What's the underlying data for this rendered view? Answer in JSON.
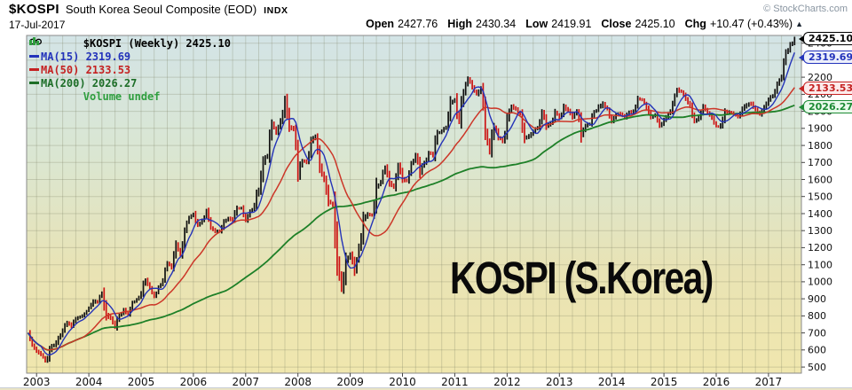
{
  "header": {
    "symbol": "$KOSPI",
    "name": "South Korea Seoul Composite (EOD)",
    "exchange": "INDX",
    "date": "17-Jul-2017",
    "copyright": "© StockCharts.com",
    "quote": {
      "open_label": "Open",
      "open_value": "2427.76",
      "high_label": "High",
      "high_value": "2430.34",
      "low_label": "Low",
      "low_value": "2419.91",
      "close_label": "Close",
      "close_value": "2425.10",
      "chg_label": "Chg",
      "chg_value": "+10.47 (+0.43%)",
      "arrow": "▲"
    }
  },
  "legend": {
    "main": "$KOSPI (Weekly) 2425.10",
    "ma15": "MA(15) 2319.69",
    "ma50": "MA(50) 2133.53",
    "ma200": "MA(200) 2026.27",
    "volume": "Volume undef"
  },
  "annotation": "KOSPI (S.Korea)",
  "callouts": [
    {
      "label": "2425.10",
      "value": 2425.1,
      "scheme": "close"
    },
    {
      "label": "2319.69",
      "value": 2319.69,
      "scheme": "ma15"
    },
    {
      "label": "2133.53",
      "value": 2133.53,
      "scheme": "ma50"
    },
    {
      "label": "2026.27",
      "value": 2026.27,
      "scheme": "ma200"
    }
  ],
  "chart_data": {
    "type": "ohlc",
    "title": "$KOSPI (Weekly) 2425.10",
    "xlim": [
      2002.81,
      2017.63
    ],
    "ylim": [
      464,
      2445
    ],
    "x_ticks": [
      2003,
      2004,
      2005,
      2006,
      2007,
      2008,
      2009,
      2010,
      2011,
      2012,
      2013,
      2014,
      2015,
      2016,
      2017
    ],
    "x_grid_step": 0.25,
    "y_ticks": [
      500,
      600,
      700,
      800,
      900,
      1000,
      1100,
      1200,
      1300,
      1400,
      1500,
      1600,
      1700,
      1800,
      1900,
      2000,
      2100,
      2200,
      2300,
      2400
    ],
    "grid": true,
    "legend_position": "top-left",
    "bar_up_color": "#101010",
    "bar_down_color": "#cc1414",
    "background_gradient": [
      "#d3e4e6",
      "#dae6d2",
      "#e9e3b4",
      "#f0e7ae"
    ],
    "last_close": 2425.1,
    "series": [
      {
        "name": "$KOSPI close (weekly, sampled monthly)",
        "start": 2002.8333,
        "step": 0.0833333,
        "values": [
          700,
          628,
          592,
          575,
          535,
          600,
          630,
          670,
          713,
          760,
          740,
          783,
          796,
          811,
          848,
          883,
          880,
          936,
          804,
          785,
          735,
          803,
          835,
          808,
          879,
          896,
          933,
          1011,
          966,
          912,
          970,
          1008,
          1112,
          1083,
          1221,
          1158,
          1297,
          1379,
          1399,
          1330,
          1359,
          1419,
          1317,
          1295,
          1297,
          1352,
          1371,
          1364,
          1432,
          1434,
          1360,
          1417,
          1453,
          1542,
          1700,
          1743,
          1933,
          1873,
          1946,
          2064,
          1906,
          1897,
          1624,
          1711,
          1704,
          1825,
          1852,
          1675,
          1595,
          1474,
          1448,
          1113,
          960,
          1124,
          1162,
          1063,
          1206,
          1369,
          1395,
          1390,
          1557,
          1591,
          1673,
          1580,
          1555,
          1683,
          1602,
          1594,
          1693,
          1741,
          1641,
          1698,
          1759,
          1743,
          1873,
          1883,
          1905,
          2051,
          2069,
          1939,
          2107,
          2192,
          2142,
          2101,
          2133,
          1880,
          1770,
          1909,
          1848,
          1826,
          1956,
          2030,
          2014,
          1982,
          1843,
          1854,
          1881,
          1905,
          1996,
          1912,
          1932,
          1997,
          1962,
          2026,
          2005,
          1964,
          2001,
          1863,
          1914,
          1926,
          1997,
          2030,
          2045,
          2011,
          1941,
          1980,
          1986,
          1962,
          1995,
          2002,
          2076,
          2068,
          2020,
          1964,
          1981,
          1916,
          1949,
          1986,
          2041,
          2127,
          2115,
          2074,
          2030,
          1941,
          1963,
          2029,
          1992,
          1961,
          1912,
          1917,
          1996,
          1994,
          1983,
          1970,
          2016,
          2035,
          2044,
          2008,
          1983,
          2026,
          2068,
          2092,
          2160,
          2205,
          2347,
          2392,
          2425
        ]
      }
    ],
    "moving_averages": [
      {
        "name": "MA(15)",
        "weeks": 15,
        "window_points": 7,
        "last": 2319.69,
        "color": "#2433b8",
        "width": 1.4
      },
      {
        "name": "MA(50)",
        "weeks": 50,
        "window_points": 24,
        "last": 2133.53,
        "color": "#cc3628",
        "width": 1.5
      },
      {
        "name": "MA(200)",
        "weeks": 200,
        "window_points": 92,
        "last": 2026.27,
        "color": "#1e8028",
        "width": 1.8
      }
    ]
  }
}
